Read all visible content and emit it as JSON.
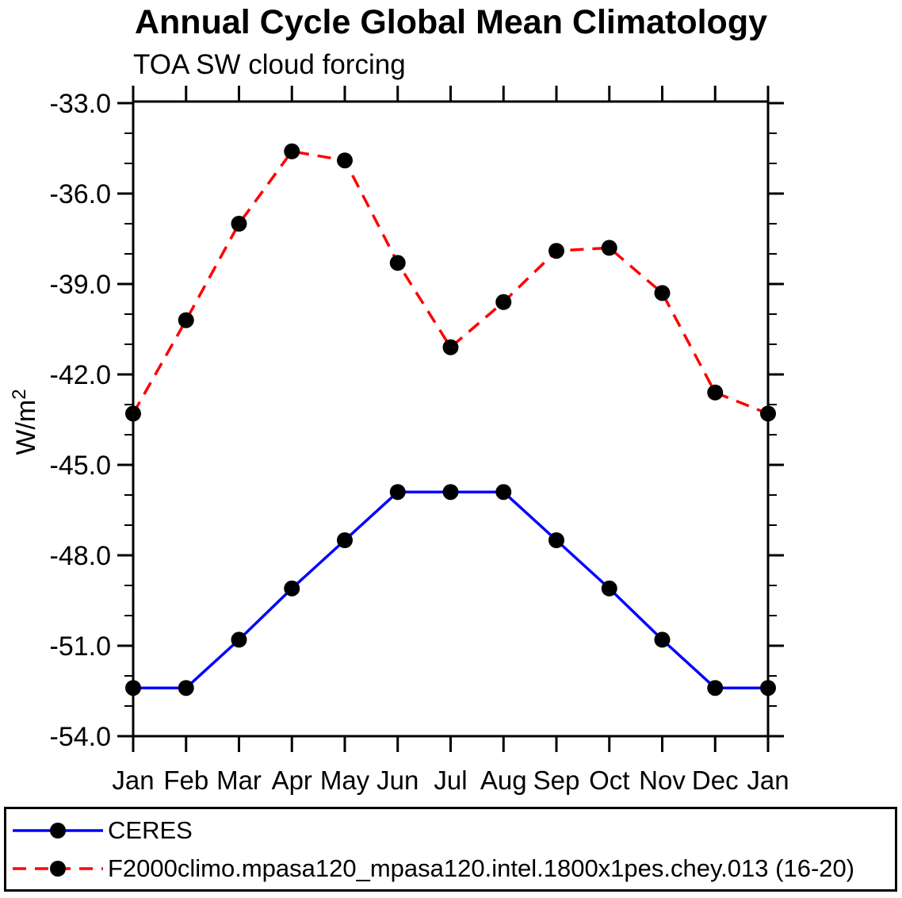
{
  "chart_data": {
    "type": "line",
    "title": "Annual Cycle Global Mean Climatology",
    "subtitle": "TOA SW cloud forcing",
    "ylabel": {
      "text": "W/m",
      "superscript": "2"
    },
    "xlabel": "",
    "categories": [
      "Jan",
      "Feb",
      "Mar",
      "Apr",
      "May",
      "Jun",
      "Jul",
      "Aug",
      "Sep",
      "Oct",
      "Nov",
      "Dec",
      "Jan"
    ],
    "ylim": [
      -54.0,
      -33.0
    ],
    "y_tick_labels": [
      "-33.0",
      "-36.0",
      "-39.0",
      "-42.0",
      "-45.0",
      "-48.0",
      "-51.0",
      "-54.0"
    ],
    "y_major_step": 3,
    "y_minor_step": 1,
    "grid": "off",
    "legend_position": "bottom-box",
    "axis_color": "#000000",
    "marker_color": "#000000",
    "series": [
      {
        "name": "CERES",
        "color": "#0000ff",
        "style": "solid",
        "marker": "filled-circle",
        "values": [
          -52.4,
          -52.4,
          -50.8,
          -49.1,
          -47.5,
          -45.9,
          -45.9,
          -45.9,
          -47.5,
          -49.1,
          -50.8,
          -52.4,
          -52.4
        ]
      },
      {
        "name": "F2000climo.mpasa120_mpasa120.intel.1800x1pes.chey.013 (16-20)",
        "color": "#ff0000",
        "style": "dashed",
        "marker": "filled-circle",
        "values": [
          -43.3,
          -40.2,
          -37.0,
          -34.6,
          -34.9,
          -38.3,
          -41.1,
          -39.6,
          -37.9,
          -37.8,
          -39.3,
          -42.6,
          -43.3
        ]
      }
    ]
  }
}
